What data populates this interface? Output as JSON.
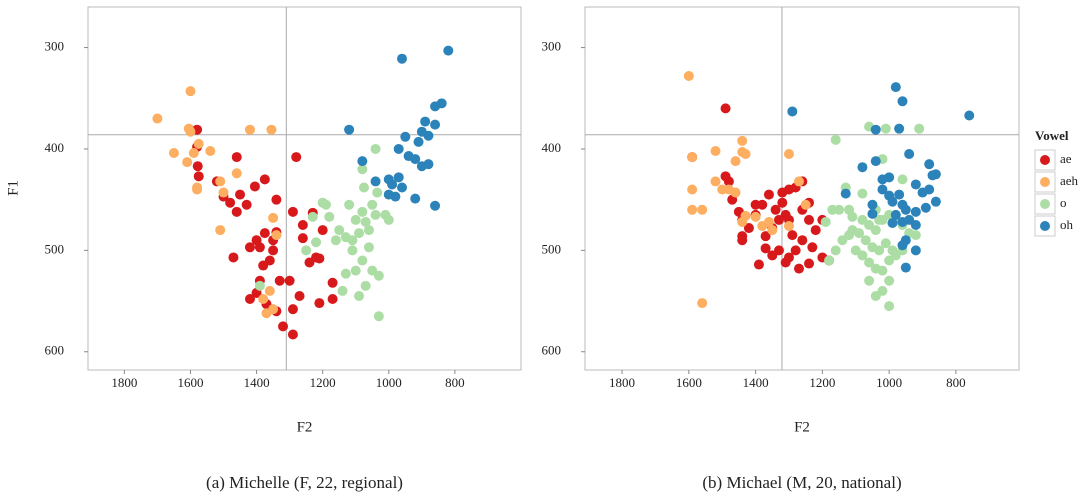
{
  "chart_data": [
    {
      "type": "scatter",
      "caption": "(a) Michelle (F, 22, regional)",
      "x_label": "F2",
      "y_label": "F1",
      "xlim": [
        1910,
        600
      ],
      "ylim": [
        618,
        260
      ],
      "xticks": [
        1800,
        1600,
        1400,
        1200,
        1000,
        800
      ],
      "yticks": [
        300,
        400,
        500,
        600
      ],
      "vline": 1310,
      "hline": 386,
      "series": [
        {
          "name": "ae",
          "color": "#d7191c",
          "x": [
            1580,
            1580,
            1578,
            1575,
            1460,
            1520,
            1500,
            1480,
            1460,
            1450,
            1430,
            1405,
            1375,
            1340,
            1280,
            1290,
            1340,
            1375,
            1400,
            1390,
            1420,
            1470,
            1350,
            1360,
            1380,
            1330,
            1300,
            1260,
            1240,
            1220,
            1210,
            1200,
            1230,
            1170,
            1170,
            1270,
            1290,
            1320,
            1290,
            1420,
            1400,
            1370,
            1340,
            1210,
            1390,
            1260,
            1350
          ],
          "values": [
            381,
            398,
            417,
            427,
            408,
            432,
            447,
            453,
            462,
            445,
            455,
            437,
            430,
            450,
            408,
            462,
            482,
            483,
            490,
            497,
            497,
            507,
            500,
            510,
            515,
            530,
            530,
            488,
            512,
            507,
            508,
            480,
            463,
            532,
            548,
            545,
            558,
            575,
            583,
            548,
            542,
            553,
            560,
            552,
            530,
            475,
            490
          ]
        },
        {
          "name": "aeh",
          "color": "#fdae61",
          "x": [
            1700,
            1600,
            1600,
            1605,
            1575,
            1650,
            1590,
            1540,
            1580,
            1610,
            1580,
            1510,
            1460,
            1500,
            1420,
            1355,
            1350,
            1340,
            1510,
            1360,
            1370,
            1350,
            1380
          ],
          "values": [
            370,
            343,
            383,
            380,
            395,
            404,
            404,
            402,
            438,
            413,
            440,
            432,
            424,
            443,
            381,
            381,
            468,
            485,
            480,
            540,
            562,
            558,
            548
          ]
        },
        {
          "name": "o",
          "color": "#abdda4",
          "x": [
            1040,
            1080,
            1075,
            1035,
            1010,
            1050,
            1080,
            1100,
            1120,
            1070,
            1060,
            1090,
            1110,
            1130,
            1160,
            1190,
            1200,
            1180,
            1230,
            1110,
            1060,
            1080,
            1100,
            1130,
            1140,
            1050,
            1030,
            1070,
            1090,
            1030,
            1390,
            1250,
            1220,
            1040,
            1000,
            1150
          ],
          "values": [
            400,
            420,
            438,
            443,
            465,
            455,
            462,
            470,
            455,
            472,
            480,
            483,
            490,
            487,
            490,
            455,
            453,
            467,
            467,
            500,
            497,
            510,
            520,
            523,
            540,
            520,
            525,
            535,
            545,
            565,
            535,
            500,
            492,
            465,
            470,
            480
          ]
        },
        {
          "name": "oh",
          "color": "#2b83ba",
          "x": [
            820,
            960,
            840,
            860,
            890,
            900,
            880,
            860,
            910,
            950,
            970,
            940,
            920,
            900,
            880,
            1000,
            990,
            970,
            960,
            980,
            1000,
            920,
            860,
            1040,
            1080,
            1120
          ],
          "values": [
            303,
            311,
            355,
            358,
            373,
            383,
            387,
            376,
            393,
            388,
            400,
            407,
            410,
            417,
            415,
            430,
            435,
            428,
            438,
            447,
            445,
            449,
            456,
            432,
            412,
            381
          ]
        }
      ]
    },
    {
      "type": "scatter",
      "caption": "(b) Michael (M, 20, national)",
      "x_label": "F2",
      "xlim": [
        1911,
        611
      ],
      "ylim": [
        618,
        260
      ],
      "xticks": [
        1800,
        1600,
        1400,
        1200,
        1000,
        800
      ],
      "yticks": [
        300,
        400,
        500,
        600
      ],
      "vline": 1321,
      "hline": 386,
      "legend": "right",
      "legend_title": "Vowel",
      "series": [
        {
          "name": "ae",
          "color": "#d7191c",
          "x": [
            1490,
            1590,
            1490,
            1480,
            1470,
            1440,
            1400,
            1380,
            1360,
            1340,
            1320,
            1300,
            1280,
            1260,
            1240,
            1310,
            1330,
            1350,
            1370,
            1290,
            1260,
            1230,
            1280,
            1300,
            1330,
            1350,
            1370,
            1420,
            1440,
            1440,
            1390,
            1310,
            1270,
            1240,
            1200,
            1180,
            1200,
            1220,
            1240,
            1400,
            1450,
            1260,
            1300,
            1320
          ],
          "values": [
            360,
            408,
            427,
            432,
            450,
            470,
            465,
            455,
            445,
            460,
            443,
            440,
            438,
            432,
            453,
            465,
            470,
            478,
            486,
            485,
            490,
            497,
            500,
            507,
            500,
            505,
            498,
            478,
            486,
            490,
            514,
            512,
            518,
            513,
            507,
            510,
            470,
            480,
            470,
            455,
            462,
            460,
            470,
            453
          ]
        },
        {
          "name": "aeh",
          "color": "#fdae61",
          "x": [
            1600,
            1440,
            1440,
            1430,
            1460,
            1520,
            1590,
            1590,
            1590,
            1560,
            1500,
            1480,
            1460,
            1440,
            1400,
            1380,
            1360,
            1300,
            1300,
            1270,
            1250,
            1560,
            1520,
            1350,
            1430
          ],
          "values": [
            328,
            392,
            403,
            405,
            412,
            402,
            408,
            440,
            460,
            460,
            440,
            440,
            443,
            472,
            467,
            476,
            472,
            476,
            405,
            432,
            455,
            552,
            432,
            480,
            466
          ]
        },
        {
          "name": "o",
          "color": "#abdda4",
          "x": [
            1160,
            1060,
            1010,
            910,
            960,
            1020,
            1080,
            1130,
            1150,
            1110,
            1080,
            1060,
            1040,
            1020,
            1000,
            980,
            960,
            940,
            920,
            1090,
            1070,
            1050,
            1030,
            1010,
            990,
            1120,
            1140,
            1160,
            1180,
            1100,
            1080,
            1060,
            1040,
            1020,
            1000,
            980,
            960,
            1060,
            1040,
            1000,
            1000,
            1020,
            1110,
            1190,
            1170,
            1120,
            1030,
            1040
          ],
          "values": [
            391,
            378,
            380,
            380,
            430,
            410,
            444,
            438,
            460,
            467,
            470,
            475,
            480,
            470,
            465,
            470,
            475,
            483,
            485,
            483,
            490,
            497,
            500,
            493,
            500,
            485,
            490,
            500,
            510,
            500,
            505,
            512,
            518,
            520,
            510,
            505,
            500,
            530,
            545,
            555,
            530,
            540,
            480,
            472,
            460,
            460,
            470,
            460
          ]
        },
        {
          "name": "oh",
          "color": "#2b83ba",
          "x": [
            1290,
            980,
            960,
            970,
            1040,
            940,
            1040,
            1020,
            1080,
            1020,
            1000,
            1000,
            990,
            970,
            960,
            950,
            980,
            960,
            940,
            920,
            890,
            880,
            900,
            870,
            860,
            880,
            860,
            920,
            950,
            960,
            920,
            950,
            1130,
            1050,
            1050,
            990,
            760,
            920
          ],
          "values": [
            363,
            339,
            353,
            380,
            381,
            405,
            412,
            430,
            418,
            440,
            446,
            428,
            452,
            445,
            455,
            460,
            465,
            472,
            470,
            462,
            458,
            440,
            443,
            426,
            425,
            415,
            452,
            475,
            490,
            495,
            500,
            517,
            444,
            455,
            464,
            473,
            367,
            435
          ]
        }
      ]
    }
  ]
}
